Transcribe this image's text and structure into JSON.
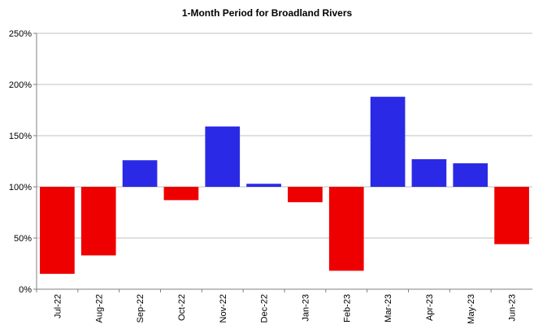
{
  "chart_data": {
    "type": "bar",
    "title": "1-Month Period for Broadland Rivers",
    "xlabel": "",
    "ylabel": "",
    "categories": [
      "Jul-22",
      "Aug-22",
      "Sep-22",
      "Oct-22",
      "Nov-22",
      "Dec-22",
      "Jan-23",
      "Feb-23",
      "Mar-23",
      "Apr-23",
      "May-23",
      "Jun-23"
    ],
    "values": [
      15,
      33,
      126,
      87,
      159,
      103,
      85,
      18,
      188,
      127,
      123,
      44
    ],
    "baseline": 100,
    "ylim": [
      0,
      250
    ],
    "yticks": [
      0,
      50,
      100,
      150,
      200,
      250
    ],
    "ytick_suffix": "%",
    "grid": true,
    "colors": {
      "above": "#2a2ae6",
      "below": "#ee0000",
      "grid": "#c0c0c0",
      "axis": "#808080"
    }
  }
}
